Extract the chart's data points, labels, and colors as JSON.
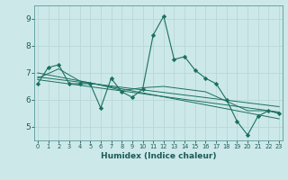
{
  "xlabel": "Humidex (Indice chaleur)",
  "background_color": "#cde8e8",
  "grid_color": "#b8d8d8",
  "line_color": "#1a7060",
  "series": [
    {
      "x": [
        0,
        1,
        2,
        3,
        4,
        5,
        6,
        7,
        8,
        9,
        10,
        11,
        12,
        13,
        14,
        15,
        16,
        17,
        18,
        19,
        20,
        21,
        22,
        23
      ],
      "y": [
        6.6,
        7.2,
        7.3,
        6.6,
        6.6,
        6.6,
        5.7,
        6.8,
        6.3,
        6.1,
        6.4,
        8.4,
        9.1,
        7.5,
        7.6,
        7.1,
        6.8,
        6.6,
        6.0,
        5.2,
        4.7,
        5.4,
        5.6,
        5.5
      ]
    },
    {
      "x": [
        0,
        2,
        4,
        6,
        8,
        10,
        12,
        14,
        16,
        18,
        20,
        22,
        23
      ],
      "y": [
        6.8,
        7.15,
        6.7,
        6.55,
        6.35,
        6.45,
        6.5,
        6.4,
        6.3,
        5.95,
        5.6,
        5.6,
        5.5
      ]
    },
    {
      "x": [
        0,
        23
      ],
      "y": [
        6.85,
        5.75
      ]
    },
    {
      "x": [
        0,
        23
      ],
      "y": [
        7.0,
        5.3
      ]
    },
    {
      "x": [
        0,
        23
      ],
      "y": [
        6.75,
        5.55
      ]
    }
  ],
  "ylim": [
    4.5,
    9.5
  ],
  "xlim": [
    -0.3,
    23.3
  ],
  "yticks": [
    5,
    6,
    7,
    8,
    9
  ],
  "xticks": [
    0,
    1,
    2,
    3,
    4,
    5,
    6,
    7,
    8,
    9,
    10,
    11,
    12,
    13,
    14,
    15,
    16,
    17,
    18,
    19,
    20,
    21,
    22,
    23
  ]
}
